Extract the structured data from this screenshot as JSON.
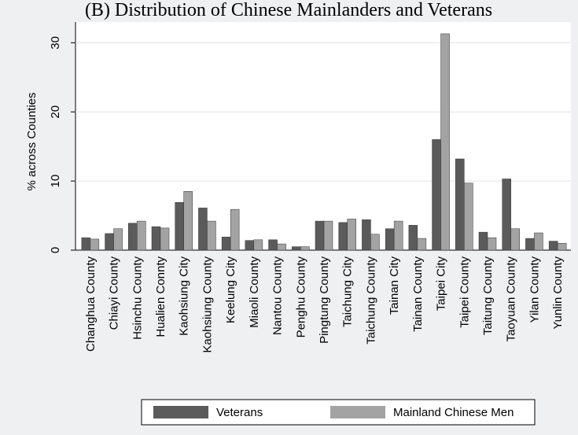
{
  "chart_data": {
    "type": "bar",
    "title": "(B) Distribution of Chinese Mainlanders and Veterans",
    "y_label": "% across Counties",
    "categories": [
      "Changhua County",
      "Chiayi County",
      "Hsinchu County",
      "Hualien Connty",
      "Kaohsiung City",
      "Kaohsiung County",
      "Keelung City",
      "Miaoli County",
      "Nantou County",
      "Penghu County",
      "Pingtung County",
      "Taichung City",
      "Taichung County",
      "Tainan City",
      "Tainan County",
      "Taipei City",
      "Taipei County",
      "Taitung County",
      "Taoyuan County",
      "Yilan County",
      "Yunlin County"
    ],
    "series": [
      {
        "name": "Veterans",
        "color": "#5b5b5b",
        "values": [
          1.8,
          2.4,
          3.9,
          3.4,
          6.9,
          6.1,
          1.9,
          1.4,
          1.5,
          0.5,
          4.2,
          4.0,
          4.4,
          3.1,
          3.6,
          16.0,
          13.2,
          2.6,
          10.3,
          1.7,
          1.3
        ]
      },
      {
        "name": "Mainland Chinese Men",
        "color": "#a3a3a3",
        "values": [
          1.6,
          3.1,
          4.2,
          3.2,
          8.5,
          4.2,
          5.9,
          1.5,
          0.9,
          0.5,
          4.2,
          4.5,
          2.3,
          4.2,
          1.7,
          31.3,
          9.7,
          1.8,
          3.1,
          2.5,
          1.0
        ]
      }
    ],
    "ylim": [
      0,
      33
    ],
    "yticks": [
      0,
      10,
      20,
      30
    ],
    "grid": true
  }
}
